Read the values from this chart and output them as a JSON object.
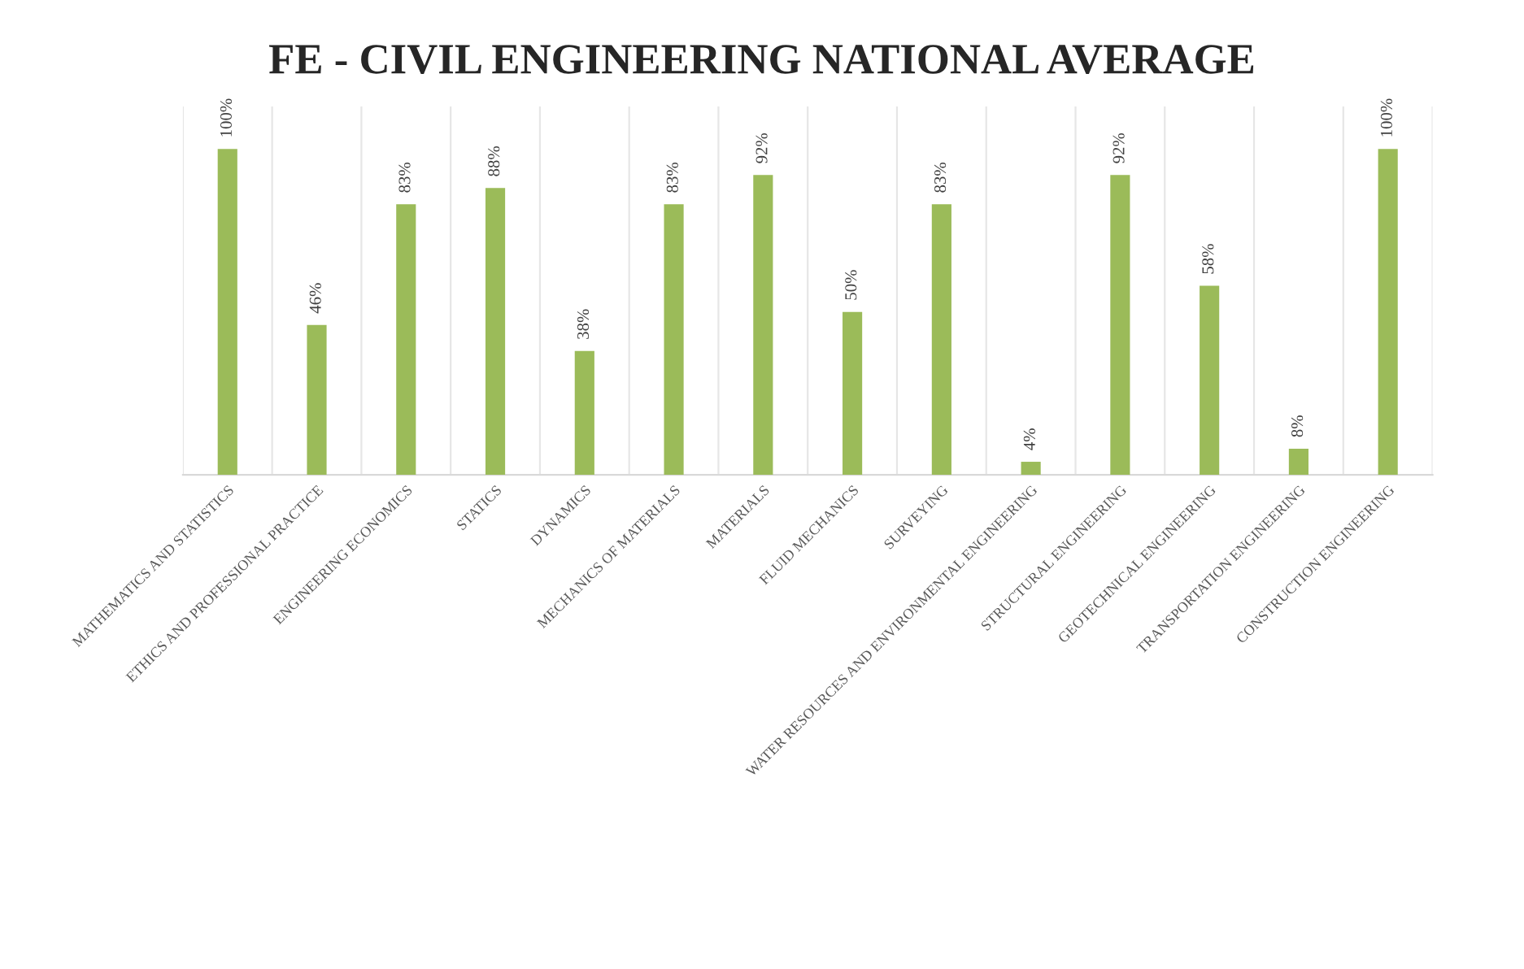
{
  "chart_data": {
    "type": "bar",
    "title": "FE - CIVIL ENGINEERING NATIONAL AVERAGE",
    "categories": [
      "MATHEMATICS AND STATISTICS",
      "ETHICS AND PROFESSIONAL PRACTICE",
      "ENGINEERING ECONOMICS",
      "STATICS",
      "DYNAMICS",
      "MECHANICS OF MATERIALS",
      "MATERIALS",
      "FLUID MECHANICS",
      "SURVEYING",
      "WATER RESOURCES AND ENVIRONMENTAL ENGINEERING",
      "STRUCTURAL ENGINEERING",
      "GEOTECHNICAL ENGINEERING",
      "TRANSPORTATION ENGINEERING",
      "CONSTRUCTION ENGINEERING"
    ],
    "values": [
      100,
      46,
      83,
      88,
      38,
      83,
      92,
      50,
      83,
      4,
      92,
      58,
      8,
      100
    ],
    "value_labels": [
      "100%",
      "46%",
      "83%",
      "88%",
      "38%",
      "83%",
      "92%",
      "50%",
      "83%",
      "4%",
      "92%",
      "58%",
      "8%",
      "100%"
    ],
    "color": "#9bbb59",
    "grid": "x",
    "legend": false
  }
}
